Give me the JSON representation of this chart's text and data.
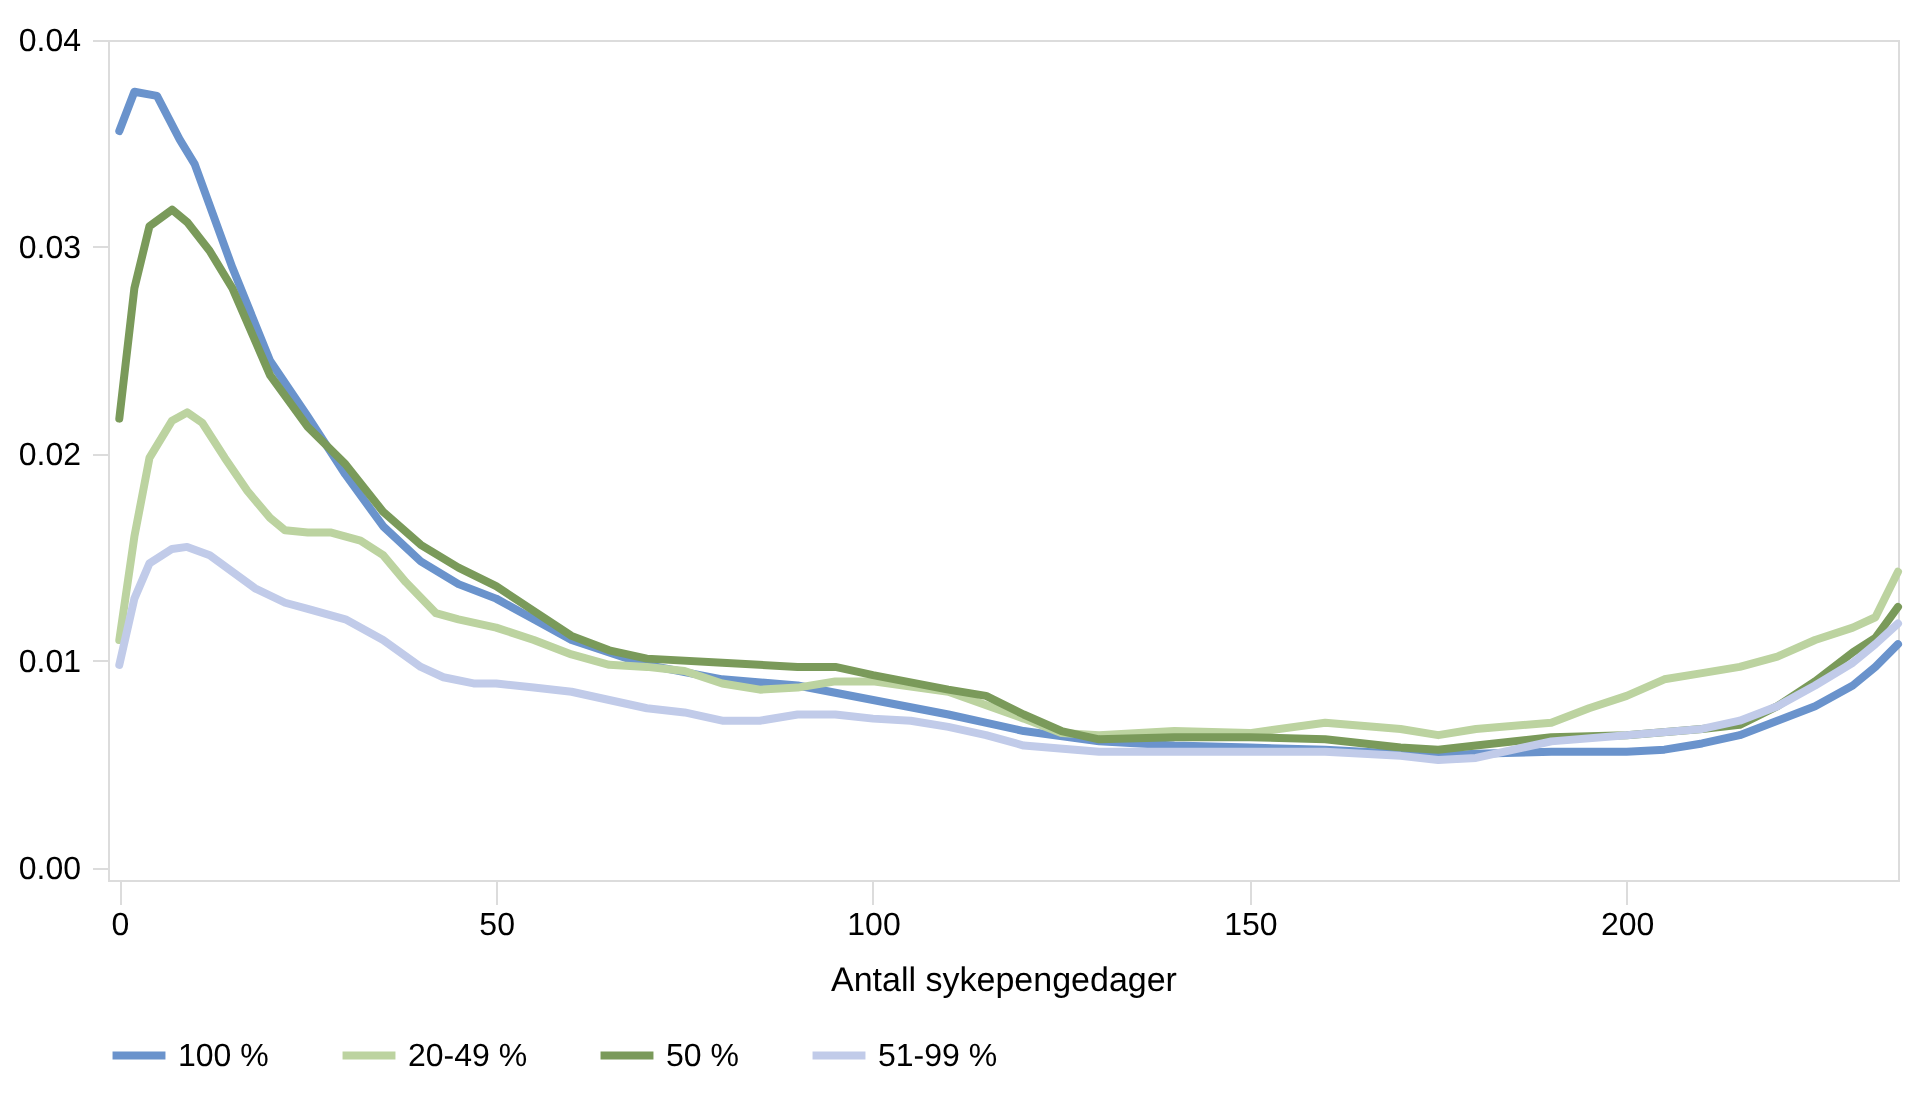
{
  "chart_data": {
    "type": "line",
    "xlabel": "Antall sykepengedager",
    "xlim": [
      -1.5,
      236
    ],
    "ylim": [
      -0.0006,
      0.04
    ],
    "xticks": [
      0,
      50,
      100,
      150,
      200
    ],
    "yticks": [
      {
        "value": 0,
        "label": "0.00"
      },
      {
        "value": 0.01,
        "label": "0.01"
      },
      {
        "value": 0.02,
        "label": "0.02"
      },
      {
        "value": 0.03,
        "label": "0.03"
      },
      {
        "value": 0.04,
        "label": "0.04"
      }
    ],
    "grid": false,
    "legend": "bottom",
    "line_style": "solid",
    "marker": "none",
    "series": [
      {
        "name": "100 %",
        "color": "#6a93cc",
        "x": [
          0,
          2,
          5,
          8,
          10,
          15,
          20,
          25,
          30,
          35,
          40,
          45,
          50,
          55,
          60,
          70,
          80,
          90,
          100,
          110,
          120,
          130,
          140,
          150,
          160,
          170,
          175,
          180,
          190,
          200,
          205,
          210,
          215,
          220,
          225,
          230,
          233,
          236
        ],
        "values": [
          0.0356,
          0.0375,
          0.0373,
          0.0352,
          0.034,
          0.029,
          0.0245,
          0.0218,
          0.019,
          0.0165,
          0.0148,
          0.0137,
          0.013,
          0.012,
          0.011,
          0.0098,
          0.0091,
          0.0088,
          0.0081,
          0.0074,
          0.0066,
          0.0061,
          0.0059,
          0.0058,
          0.0057,
          0.0055,
          0.0054,
          0.0055,
          0.0056,
          0.0056,
          0.0057,
          0.006,
          0.0064,
          0.0071,
          0.0078,
          0.0088,
          0.0097,
          0.0108
        ]
      },
      {
        "name": "20-49 %",
        "color": "#bcd3a0",
        "x": [
          0,
          2,
          4,
          7,
          9,
          11,
          14,
          17,
          20,
          22,
          25,
          28,
          32,
          35,
          38,
          42,
          45,
          50,
          55,
          60,
          65,
          70,
          75,
          80,
          85,
          90,
          95,
          100,
          110,
          120,
          125,
          130,
          140,
          150,
          160,
          170,
          175,
          180,
          190,
          195,
          200,
          205,
          210,
          215,
          220,
          225,
          230,
          233,
          236
        ],
        "values": [
          0.011,
          0.016,
          0.0198,
          0.0216,
          0.022,
          0.0215,
          0.0198,
          0.0182,
          0.0169,
          0.0163,
          0.0162,
          0.0162,
          0.0158,
          0.0151,
          0.0138,
          0.0123,
          0.012,
          0.0116,
          0.011,
          0.0103,
          0.0098,
          0.0097,
          0.0095,
          0.0089,
          0.0086,
          0.0087,
          0.009,
          0.009,
          0.0085,
          0.0072,
          0.0065,
          0.0064,
          0.0066,
          0.0065,
          0.007,
          0.0067,
          0.0064,
          0.0067,
          0.007,
          0.0077,
          0.0083,
          0.0091,
          0.0094,
          0.0097,
          0.0102,
          0.011,
          0.0116,
          0.0121,
          0.0143
        ]
      },
      {
        "name": "50 %",
        "color": "#7a9a5a",
        "x": [
          0,
          2,
          4,
          7,
          9,
          12,
          15,
          20,
          25,
          30,
          35,
          40,
          45,
          50,
          55,
          60,
          65,
          70,
          80,
          90,
          95,
          100,
          110,
          115,
          120,
          125,
          130,
          140,
          150,
          160,
          170,
          175,
          180,
          190,
          200,
          210,
          215,
          220,
          225,
          230,
          233,
          236
        ],
        "values": [
          0.0217,
          0.028,
          0.031,
          0.0318,
          0.0312,
          0.0298,
          0.028,
          0.0238,
          0.0213,
          0.0195,
          0.0172,
          0.0156,
          0.0145,
          0.0136,
          0.0124,
          0.0112,
          0.0105,
          0.0101,
          0.0099,
          0.0097,
          0.0097,
          0.0093,
          0.0086,
          0.0083,
          0.0074,
          0.0066,
          0.0062,
          0.0063,
          0.0063,
          0.0062,
          0.0058,
          0.0057,
          0.0059,
          0.0063,
          0.0064,
          0.0067,
          0.0069,
          0.0078,
          0.009,
          0.0104,
          0.0111,
          0.0126
        ]
      },
      {
        "name": "51-99 %",
        "color": "#c1cbe9",
        "x": [
          0,
          2,
          4,
          7,
          9,
          12,
          15,
          18,
          22,
          25,
          30,
          35,
          40,
          43,
          47,
          50,
          55,
          60,
          65,
          70,
          75,
          80,
          85,
          90,
          95,
          100,
          105,
          110,
          115,
          120,
          130,
          140,
          150,
          160,
          170,
          175,
          180,
          185,
          190,
          200,
          210,
          215,
          220,
          225,
          230,
          233,
          236
        ],
        "values": [
          0.0098,
          0.013,
          0.0147,
          0.0154,
          0.0155,
          0.0151,
          0.0143,
          0.0135,
          0.0128,
          0.0125,
          0.012,
          0.011,
          0.0097,
          0.0092,
          0.0089,
          0.0089,
          0.0087,
          0.0085,
          0.0081,
          0.0077,
          0.0075,
          0.0071,
          0.0071,
          0.0074,
          0.0074,
          0.0072,
          0.0071,
          0.0068,
          0.0064,
          0.0059,
          0.0056,
          0.0056,
          0.0056,
          0.0056,
          0.0054,
          0.0052,
          0.0053,
          0.0057,
          0.0061,
          0.0064,
          0.0067,
          0.0071,
          0.0078,
          0.0088,
          0.0099,
          0.0108,
          0.0118
        ]
      }
    ]
  }
}
